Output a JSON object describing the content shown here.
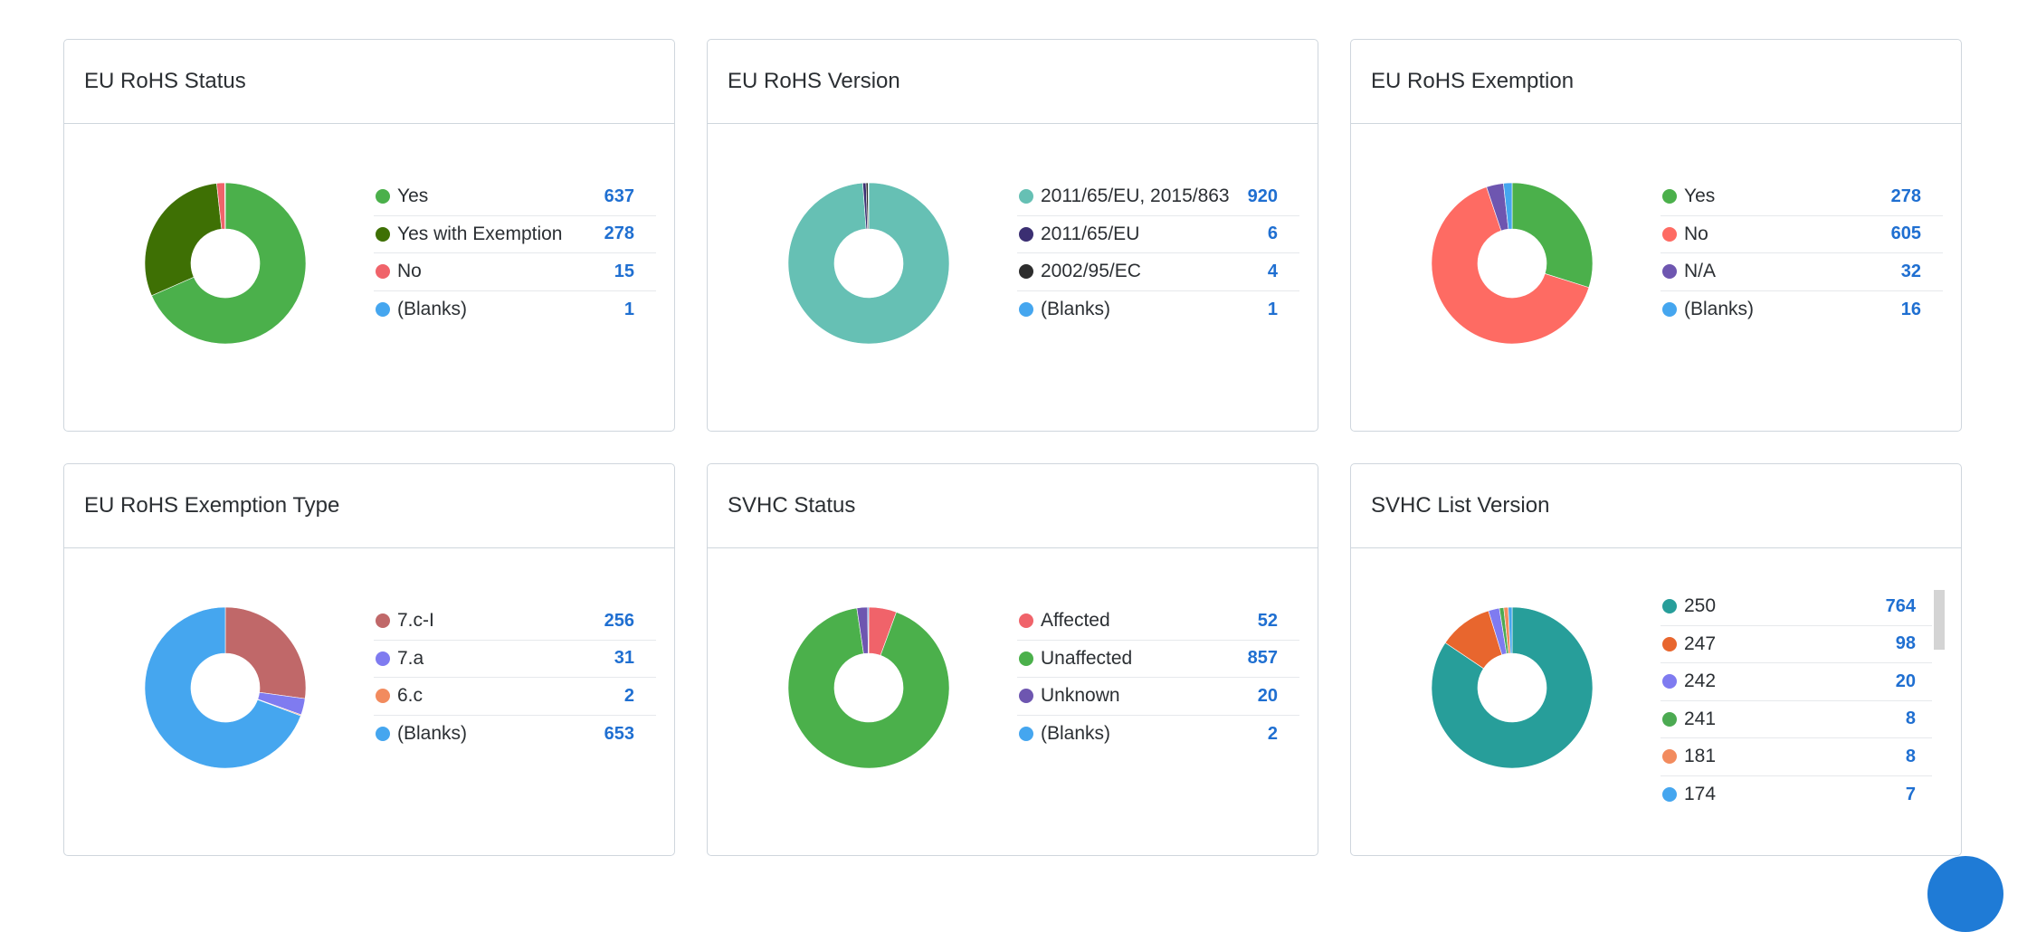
{
  "fab_color": "#1f7bd6",
  "chart_data": [
    {
      "type": "pie",
      "title": "EU RoHS Status",
      "series": [
        {
          "name": "Yes",
          "value": 637,
          "color": "#4bb04b"
        },
        {
          "name": "Yes with Exemption",
          "value": 278,
          "color": "#3e7004"
        },
        {
          "name": "No",
          "value": 15,
          "color": "#f0636a"
        },
        {
          "name": "(Blanks)",
          "value": 1,
          "color": "#45a6ef"
        }
      ]
    },
    {
      "type": "pie",
      "title": "EU RoHS Version",
      "series": [
        {
          "name": "2011/65/EU, 2015/863",
          "value": 920,
          "color": "#66c0b4"
        },
        {
          "name": "2011/65/EU",
          "value": 6,
          "color": "#3b2f72"
        },
        {
          "name": "2002/95/EC",
          "value": 4,
          "color": "#2d2d2d"
        },
        {
          "name": "(Blanks)",
          "value": 1,
          "color": "#45a6ef"
        }
      ]
    },
    {
      "type": "pie",
      "title": "EU RoHS Exemption",
      "series": [
        {
          "name": "Yes",
          "value": 278,
          "color": "#4bb04b"
        },
        {
          "name": "No",
          "value": 605,
          "color": "#fe6b63"
        },
        {
          "name": "N/A",
          "value": 32,
          "color": "#6e56b0"
        },
        {
          "name": "(Blanks)",
          "value": 16,
          "color": "#45a6ef"
        }
      ]
    },
    {
      "type": "pie",
      "title": "EU RoHS Exemption Type",
      "series": [
        {
          "name": "7.c-I",
          "value": 256,
          "color": "#c06869"
        },
        {
          "name": "7.a",
          "value": 31,
          "color": "#7f7bf0"
        },
        {
          "name": "6.c",
          "value": 2,
          "color": "#f28b5e"
        },
        {
          "name": "(Blanks)",
          "value": 653,
          "color": "#45a6ef"
        }
      ]
    },
    {
      "type": "pie",
      "title": "SVHC Status",
      "series": [
        {
          "name": "Affected",
          "value": 52,
          "color": "#f0636a"
        },
        {
          "name": "Unaffected",
          "value": 857,
          "color": "#4bb04b"
        },
        {
          "name": "Unknown",
          "value": 20,
          "color": "#6e56b0"
        },
        {
          "name": "(Blanks)",
          "value": 2,
          "color": "#45a6ef"
        }
      ]
    },
    {
      "type": "pie",
      "title": "SVHC List Version",
      "series": [
        {
          "name": "250",
          "value": 764,
          "color": "#279e9a"
        },
        {
          "name": "247",
          "value": 98,
          "color": "#e8662e"
        },
        {
          "name": "242",
          "value": 20,
          "color": "#7f7bf0"
        },
        {
          "name": "241",
          "value": 8,
          "color": "#4caa52"
        },
        {
          "name": "181",
          "value": 8,
          "color": "#f28b5e"
        },
        {
          "name": "174",
          "value": 7,
          "color": "#45a6ef"
        }
      ]
    }
  ]
}
